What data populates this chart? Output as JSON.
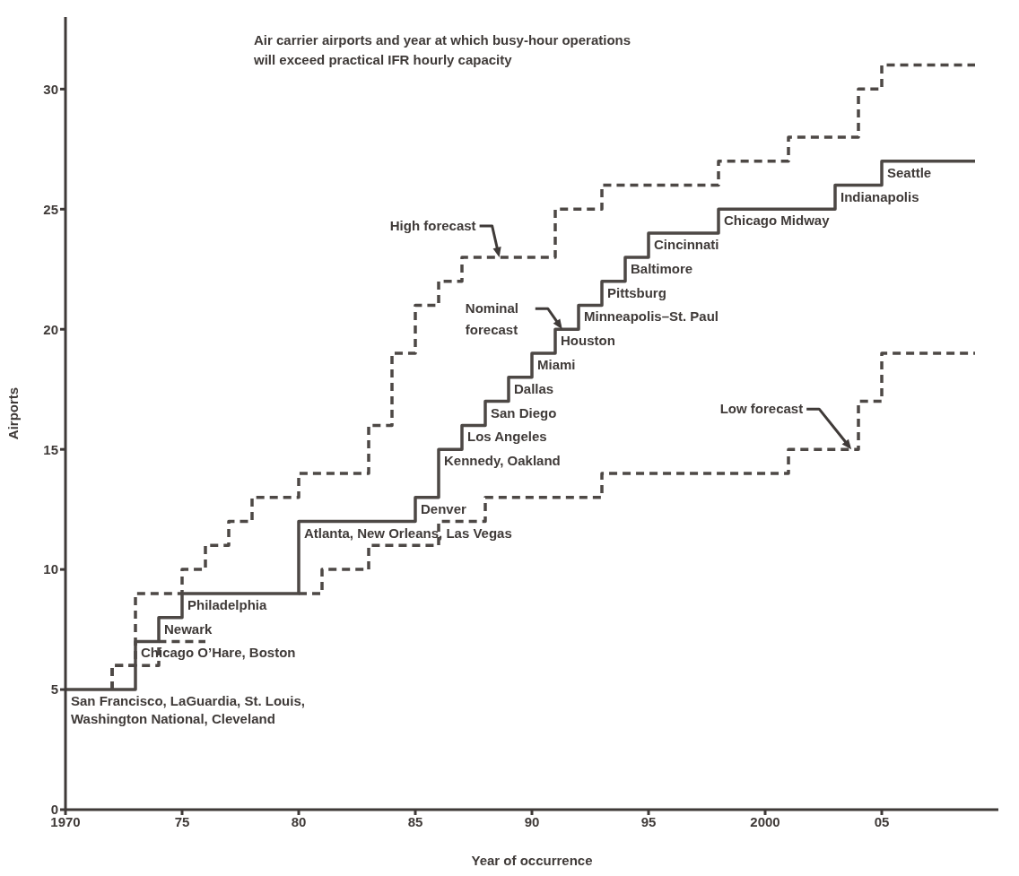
{
  "chart_data": {
    "type": "step",
    "title": "Air carrier airports and year at which busy-hour operations\nwill exceed practical IFR hourly capacity",
    "xlabel": "Year of occurrence",
    "ylabel": "Airports",
    "xlim": [
      1970,
      2010
    ],
    "xticks": [
      1970,
      {
        "value": 1975,
        "label": "75"
      },
      {
        "value": 1980,
        "label": "80"
      },
      {
        "value": 1985,
        "label": "85"
      },
      {
        "value": 1990,
        "label": "90"
      },
      {
        "value": 1995,
        "label": "95"
      },
      2000,
      {
        "value": 2005,
        "label": "05"
      }
    ],
    "ylim": [
      0,
      33
    ],
    "yticks": [
      0,
      5,
      10,
      15,
      20,
      25,
      30
    ],
    "marker": "none",
    "series": [
      {
        "name": "High forecast",
        "color": "#4d4845",
        "line_style": "dashed",
        "x": [
          1972,
          1972,
          1973,
          1975,
          1976,
          1977,
          1978,
          1980,
          1983,
          1984,
          1985,
          1986,
          1987,
          1991,
          1993,
          1998,
          2001,
          2004,
          2005,
          2009
        ],
        "values": [
          5,
          6,
          9,
          10,
          11,
          12,
          13,
          14,
          16,
          19,
          21,
          22,
          23,
          25,
          26,
          27,
          28,
          30,
          31,
          31
        ]
      },
      {
        "name": "Nominal forecast",
        "color": "#4d4845",
        "line_style": "solid",
        "x": [
          1970,
          1973,
          1974,
          1975,
          1980,
          1985,
          1986,
          1987,
          1988,
          1989,
          1990,
          1991,
          1992,
          1993,
          1994,
          1995,
          1998,
          2003,
          2005,
          2009
        ],
        "values": [
          5,
          7,
          8,
          9,
          12,
          13,
          15,
          16,
          17,
          18,
          19,
          20,
          21,
          22,
          23,
          24,
          25,
          26,
          27,
          27
        ]
      },
      {
        "name": "Low forecast",
        "color": "#4d4845",
        "line_style": "dashed",
        "x": [
          1972,
          1972,
          1974,
          1976,
          1978,
          1980,
          1981,
          1983,
          1986,
          1988,
          1993,
          2001,
          2004,
          2005,
          2009
        ],
        "values": [
          5,
          6,
          7,
          7,
          null,
          9,
          10,
          11,
          12,
          13,
          14,
          15,
          17,
          19,
          19
        ]
      }
    ],
    "annotations": [
      {
        "text": "San Francisco, LaGuardia, St. Louis,\nWashington National, Cleveland",
        "x": 1970,
        "y": 5
      },
      {
        "text": "Chicago O’Hare, Boston",
        "x": 1973,
        "y": 7
      },
      {
        "text": "Newark",
        "x": 1974,
        "y": 8
      },
      {
        "text": "Philadelphia",
        "x": 1975,
        "y": 9
      },
      {
        "text": "Atlanta, New Orleans, Las Vegas",
        "x": 1980,
        "y": 12
      },
      {
        "text": "Denver",
        "x": 1985,
        "y": 13
      },
      {
        "text": "Kennedy, Oakland",
        "x": 1986,
        "y": 15
      },
      {
        "text": "Los Angeles",
        "x": 1987,
        "y": 16
      },
      {
        "text": "San Diego",
        "x": 1988,
        "y": 17
      },
      {
        "text": "Dallas",
        "x": 1989,
        "y": 18
      },
      {
        "text": "Miami",
        "x": 1990,
        "y": 19
      },
      {
        "text": "Houston",
        "x": 1991,
        "y": 20
      },
      {
        "text": "Minneapolis–St. Paul",
        "x": 1992,
        "y": 21
      },
      {
        "text": "Pittsburg",
        "x": 1993,
        "y": 22
      },
      {
        "text": "Baltimore",
        "x": 1994,
        "y": 23
      },
      {
        "text": "Cincinnati",
        "x": 1995,
        "y": 24
      },
      {
        "text": "Chicago Midway",
        "x": 1998,
        "y": 25
      },
      {
        "text": "Indianapolis",
        "x": 2003,
        "y": 26
      },
      {
        "text": "Seattle",
        "x": 2005,
        "y": 27
      }
    ]
  }
}
